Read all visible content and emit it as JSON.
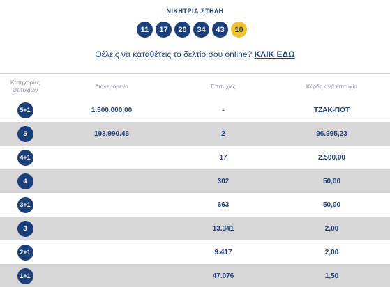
{
  "title": "ΝΙΚΗΤΡΙΑ ΣΤΗΛΗ",
  "balls": [
    "11",
    "17",
    "20",
    "34",
    "43"
  ],
  "bonus_ball": "10",
  "cta": {
    "text": "Θέλεις να καταθέτεις το δελτίο σου online?",
    "link": "ΚΛΙΚ ΕΔΩ"
  },
  "table": {
    "headers": [
      "Κατηγορίες επιτυχιών",
      "Διανεμόμενα",
      "Επιτυχίες",
      "Κέρδη ανά επιτυχία"
    ],
    "rows": [
      {
        "category": "5+1",
        "distributed": "1.500.000,00",
        "winners": "-",
        "prize": "ΤΖΑΚ-ΠΟΤ"
      },
      {
        "category": "5",
        "distributed": "193.990.46",
        "winners": "2",
        "prize": "96.995,23"
      },
      {
        "category": "4+1",
        "distributed": "",
        "winners": "17",
        "prize": "2.500,00"
      },
      {
        "category": "4",
        "distributed": "",
        "winners": "302",
        "prize": "50,00"
      },
      {
        "category": "3+1",
        "distributed": "",
        "winners": "663",
        "prize": "50,00"
      },
      {
        "category": "3",
        "distributed": "",
        "winners": "13.341",
        "prize": "2,00"
      },
      {
        "category": "2+1",
        "distributed": "",
        "winners": "9.417",
        "prize": "2,00"
      },
      {
        "category": "1+1",
        "distributed": "",
        "winners": "47.076",
        "prize": "1,50"
      }
    ]
  },
  "colors": {
    "ball": "#1b3f7b",
    "bonus": "#f2c230",
    "row_alt": "#d7d7d7",
    "text": "#1d3f7a"
  }
}
